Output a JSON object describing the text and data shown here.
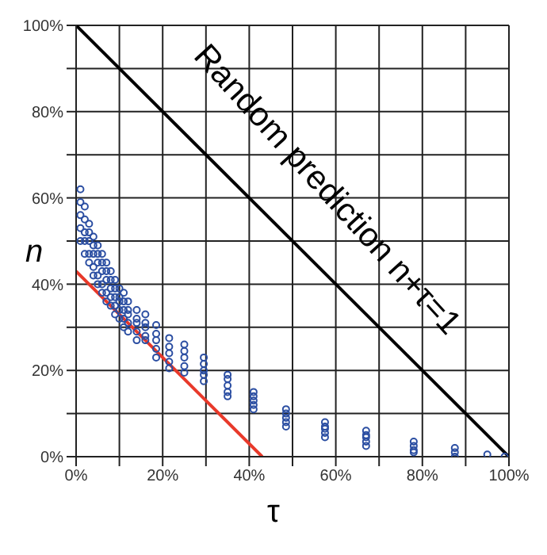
{
  "chart_data": {
    "type": "scatter",
    "xlabel": "τ",
    "ylabel": "n",
    "xlim": [
      0,
      100
    ],
    "ylim": [
      0,
      100
    ],
    "xticks": [
      {
        "value": 0,
        "label": "0%"
      },
      {
        "value": 10,
        "label": null
      },
      {
        "value": 20,
        "label": "20%"
      },
      {
        "value": 30,
        "label": null
      },
      {
        "value": 40,
        "label": "40%"
      },
      {
        "value": 50,
        "label": null
      },
      {
        "value": 60,
        "label": "60%"
      },
      {
        "value": 70,
        "label": null
      },
      {
        "value": 80,
        "label": "80%"
      },
      {
        "value": 90,
        "label": null
      },
      {
        "value": 100,
        "label": "100%"
      }
    ],
    "yticks": [
      {
        "value": 0,
        "label": "0%"
      },
      {
        "value": 10,
        "label": null
      },
      {
        "value": 20,
        "label": "20%"
      },
      {
        "value": 30,
        "label": null
      },
      {
        "value": 40,
        "label": "40%"
      },
      {
        "value": 50,
        "label": null
      },
      {
        "value": 60,
        "label": "60%"
      },
      {
        "value": 70,
        "label": null
      },
      {
        "value": 80,
        "label": "80%"
      },
      {
        "value": 90,
        "label": null
      },
      {
        "value": 100,
        "label": "100%"
      }
    ],
    "grid": true,
    "marker": "circle",
    "annotations": [
      "Random prediction n+τ=1"
    ],
    "series": [
      {
        "color": "#2b4ea2",
        "x": [
          1,
          1,
          1,
          1,
          1,
          2,
          2,
          2,
          2,
          2,
          3,
          3,
          3,
          3,
          3,
          4,
          4,
          4,
          4,
          4,
          5,
          5,
          5,
          5,
          5,
          6,
          6,
          6,
          6,
          6,
          7,
          7,
          7,
          7,
          7,
          8,
          8,
          8,
          8,
          8,
          9,
          9,
          9,
          9,
          9,
          10,
          10,
          10,
          10,
          10,
          11,
          11,
          11,
          11,
          11,
          12,
          12,
          12,
          12,
          12,
          14,
          14,
          14,
          14,
          14,
          16,
          16,
          16,
          16,
          16,
          18.5,
          18.5,
          18.5,
          18.5,
          18.5,
          21.5,
          21.5,
          21.5,
          21.5,
          21.5,
          25,
          25,
          25,
          25,
          25,
          29.5,
          29.5,
          29.5,
          29.5,
          29.5,
          35,
          35,
          35,
          35,
          35,
          41,
          41,
          41,
          41,
          41,
          48.5,
          48.5,
          48.5,
          48.5,
          48.5,
          57.5,
          57.5,
          57.5,
          57.5,
          57.5,
          67,
          67,
          67,
          67,
          67,
          78,
          78,
          78,
          78,
          87.5,
          87.5,
          87.5,
          95,
          99
        ],
        "values": [
          62,
          59,
          56,
          53,
          50,
          58,
          55,
          52,
          50,
          47,
          54,
          52,
          50,
          47,
          45,
          51,
          49,
          47,
          44,
          42,
          49,
          47,
          45,
          42,
          40,
          47,
          45,
          43,
          40,
          38,
          45,
          43,
          41,
          38,
          36,
          43,
          41,
          39,
          37,
          35,
          41,
          39,
          37,
          35,
          33,
          39,
          37,
          36,
          34,
          32,
          38,
          36,
          34,
          32,
          30,
          36,
          34,
          33,
          31,
          29,
          34,
          32,
          31,
          29,
          27,
          33,
          31,
          30,
          28,
          27,
          30.5,
          28.5,
          27,
          25,
          23,
          27.5,
          25.5,
          24,
          22,
          20.5,
          26,
          24.5,
          23,
          21,
          19.5,
          23,
          21.5,
          20,
          19,
          17.5,
          19,
          18,
          16.5,
          15,
          14,
          15,
          14,
          13,
          12,
          11,
          11,
          10,
          9,
          8,
          7,
          8,
          7,
          6.5,
          5.5,
          4.5,
          6,
          5,
          4.5,
          3.5,
          2.5,
          3.5,
          2.5,
          1.5,
          1,
          2,
          1,
          0,
          0.5,
          0
        ]
      },
      {
        "type": "line",
        "marker": "none",
        "color": "#e8392a",
        "x": [
          0,
          43
        ],
        "values": [
          43,
          0
        ]
      },
      {
        "type": "line",
        "marker": "none",
        "color": "#000000",
        "x": [
          0,
          100
        ],
        "values": [
          100,
          0
        ]
      }
    ]
  }
}
